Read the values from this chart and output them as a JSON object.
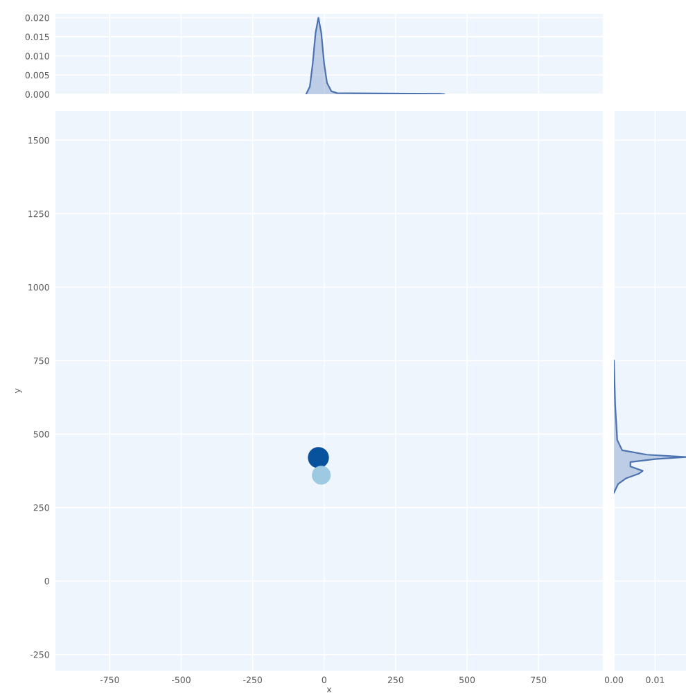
{
  "chart_data": [
    {
      "type": "area",
      "x": [
        -63,
        -50,
        -40,
        -30,
        -20,
        -10,
        0,
        10,
        25,
        45,
        200,
        406,
        420
      ],
      "series": [
        {
          "color": "#4c72b0",
          "values": [
            0,
            0.002,
            0.008,
            0.016,
            0.02,
            0.016,
            0.008,
            0.003,
            0.0008,
            0.0003,
            0.0002,
            0.0001,
            0
          ]
        }
      ],
      "xlim": [
        -940,
        975
      ],
      "ylim": [
        0,
        0.021
      ],
      "yticks": [
        {
          "value": 0,
          "label": "0.000"
        },
        {
          "value": 0.005,
          "label": "0.005"
        },
        {
          "value": 0.01,
          "label": "0.010"
        },
        {
          "value": 0.015,
          "label": "0.015"
        },
        {
          "value": 0.02,
          "label": "0.020"
        }
      ],
      "grid": true,
      "tick_labels": "y"
    },
    {
      "type": "bubble",
      "x": [
        -20,
        -10
      ],
      "series": [
        {
          "colors": [
            "#08519c",
            "#9ecae1"
          ],
          "values": [
            420,
            360
          ],
          "sizes": [
            1,
            0.8
          ]
        }
      ],
      "xlabel": "x",
      "ylabel": "y",
      "xlim": [
        -940,
        975
      ],
      "ylim": [
        -305,
        1600
      ],
      "xticks": [
        -750,
        -500,
        -250,
        0,
        250,
        500,
        750
      ],
      "yticks": [
        -250,
        0,
        250,
        500,
        750,
        1000,
        1250,
        1500
      ],
      "grid": true
    },
    {
      "type": "area",
      "orientation": "horizontal",
      "x": [
        300,
        330,
        350,
        365,
        375,
        390,
        405,
        415,
        422,
        430,
        445,
        480,
        600,
        750
      ],
      "series": [
        {
          "color": "#4c72b0",
          "values": [
            0,
            0.001,
            0.003,
            0.006,
            0.007,
            0.004,
            0.004,
            0.01,
            0.0175,
            0.008,
            0.002,
            0.0008,
            0.0003,
            0
          ]
        }
      ],
      "xlim": [
        0,
        0.0175
      ],
      "ylim": [
        -305,
        1600
      ],
      "xticks": [
        {
          "value": 0,
          "label": "0.00"
        },
        {
          "value": 0.01,
          "label": "0.01"
        }
      ],
      "grid": true,
      "tick_labels": "x"
    }
  ]
}
